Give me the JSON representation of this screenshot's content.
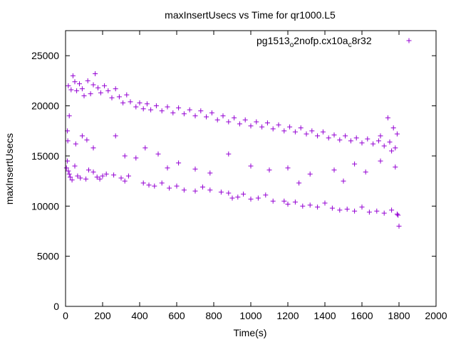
{
  "chart_data": {
    "type": "scatter",
    "title": "maxInsertUsecs vs Time for qr1000.L5",
    "xlabel": "Time(s)",
    "ylabel": "maxInsertUsecs",
    "xlim": [
      0,
      2000
    ],
    "ylim": [
      0,
      27500
    ],
    "x_ticks": [
      0,
      200,
      400,
      600,
      800,
      1000,
      1200,
      1400,
      1600,
      1800,
      2000
    ],
    "x_tick_labels": [
      "0",
      "200",
      "400",
      "600",
      "800",
      "1000",
      "1200",
      "1400",
      "1600",
      "1800",
      "2000"
    ],
    "y_ticks": [
      0,
      5000,
      10000,
      15000,
      20000,
      25000
    ],
    "y_tick_labels": [
      "0",
      "5000",
      "10000",
      "15000",
      "20000",
      "25000"
    ],
    "grid": false,
    "legend_position": "top-right",
    "series": [
      {
        "name": "pg1513o2nofp.cx10ac8r32",
        "legend_parts": [
          {
            "text": "pg1513",
            "sub": false
          },
          {
            "text": "o",
            "sub": true
          },
          {
            "text": "2nofp.cx10a",
            "sub": false
          },
          {
            "text": "c",
            "sub": true
          },
          {
            "text": "8r32",
            "sub": false
          }
        ],
        "color": "#9400d3",
        "marker": "plus",
        "points": [
          [
            5,
            13800
          ],
          [
            10,
            14500
          ],
          [
            15,
            13500
          ],
          [
            20,
            13200
          ],
          [
            25,
            12900
          ],
          [
            35,
            12600
          ],
          [
            50,
            14000
          ],
          [
            65,
            13000
          ],
          [
            80,
            12800
          ],
          [
            110,
            12700
          ],
          [
            125,
            13600
          ],
          [
            150,
            13400
          ],
          [
            170,
            12900
          ],
          [
            185,
            12700
          ],
          [
            200,
            13000
          ],
          [
            220,
            13200
          ],
          [
            260,
            13100
          ],
          [
            300,
            12800
          ],
          [
            320,
            12500
          ],
          [
            340,
            13000
          ],
          [
            420,
            12300
          ],
          [
            450,
            12100
          ],
          [
            480,
            12000
          ],
          [
            520,
            12300
          ],
          [
            560,
            11800
          ],
          [
            600,
            12000
          ],
          [
            640,
            11600
          ],
          [
            700,
            11500
          ],
          [
            740,
            11900
          ],
          [
            780,
            11600
          ],
          [
            840,
            11400
          ],
          [
            880,
            11300
          ],
          [
            900,
            10800
          ],
          [
            930,
            10900
          ],
          [
            960,
            11200
          ],
          [
            1000,
            10700
          ],
          [
            1040,
            10800
          ],
          [
            1080,
            11100
          ],
          [
            1120,
            10500
          ],
          [
            1180,
            10500
          ],
          [
            1200,
            10200
          ],
          [
            1240,
            10400
          ],
          [
            1280,
            10000
          ],
          [
            1320,
            10100
          ],
          [
            1360,
            9900
          ],
          [
            1400,
            10300
          ],
          [
            1440,
            9800
          ],
          [
            1480,
            9600
          ],
          [
            1520,
            9700
          ],
          [
            1560,
            9500
          ],
          [
            1600,
            9900
          ],
          [
            1640,
            9400
          ],
          [
            1680,
            9500
          ],
          [
            1720,
            9300
          ],
          [
            1760,
            9600
          ],
          [
            1790,
            9200
          ],
          [
            1800,
            8000
          ],
          [
            1795,
            9100
          ],
          [
            12,
            16500
          ],
          [
            10,
            17500
          ],
          [
            20,
            19000
          ],
          [
            55,
            16200
          ],
          [
            90,
            17000
          ],
          [
            115,
            16600
          ],
          [
            150,
            15800
          ],
          [
            270,
            17000
          ],
          [
            320,
            15000
          ],
          [
            380,
            14800
          ],
          [
            430,
            15800
          ],
          [
            500,
            15200
          ],
          [
            550,
            13800
          ],
          [
            610,
            14300
          ],
          [
            700,
            13700
          ],
          [
            780,
            13300
          ],
          [
            880,
            15200
          ],
          [
            1000,
            14000
          ],
          [
            1100,
            13600
          ],
          [
            1200,
            13800
          ],
          [
            1260,
            12300
          ],
          [
            1320,
            13200
          ],
          [
            1450,
            13600
          ],
          [
            1500,
            12500
          ],
          [
            1560,
            14200
          ],
          [
            1620,
            13400
          ],
          [
            1700,
            14500
          ],
          [
            1760,
            15500
          ],
          [
            1780,
            13900
          ],
          [
            15,
            22000
          ],
          [
            30,
            21600
          ],
          [
            40,
            23000
          ],
          [
            50,
            22400
          ],
          [
            60,
            21500
          ],
          [
            75,
            22200
          ],
          [
            90,
            21700
          ],
          [
            100,
            21000
          ],
          [
            120,
            22500
          ],
          [
            135,
            21200
          ],
          [
            150,
            22100
          ],
          [
            160,
            23200
          ],
          [
            175,
            21800
          ],
          [
            190,
            21300
          ],
          [
            210,
            22000
          ],
          [
            230,
            21500
          ],
          [
            250,
            20800
          ],
          [
            270,
            21700
          ],
          [
            290,
            20900
          ],
          [
            310,
            20300
          ],
          [
            330,
            21100
          ],
          [
            350,
            20400
          ],
          [
            380,
            19900
          ],
          [
            400,
            20300
          ],
          [
            420,
            19700
          ],
          [
            440,
            20200
          ],
          [
            460,
            19600
          ],
          [
            490,
            20000
          ],
          [
            520,
            19500
          ],
          [
            550,
            19900
          ],
          [
            580,
            19300
          ],
          [
            610,
            19800
          ],
          [
            640,
            19200
          ],
          [
            670,
            19600
          ],
          [
            700,
            19000
          ],
          [
            730,
            19500
          ],
          [
            760,
            18900
          ],
          [
            790,
            19300
          ],
          [
            820,
            18600
          ],
          [
            850,
            19000
          ],
          [
            880,
            18400
          ],
          [
            910,
            18800
          ],
          [
            940,
            18200
          ],
          [
            970,
            18600
          ],
          [
            1000,
            18000
          ],
          [
            1030,
            18400
          ],
          [
            1060,
            17900
          ],
          [
            1090,
            18300
          ],
          [
            1120,
            17700
          ],
          [
            1150,
            18100
          ],
          [
            1180,
            17500
          ],
          [
            1210,
            17900
          ],
          [
            1240,
            17400
          ],
          [
            1270,
            17800
          ],
          [
            1300,
            17200
          ],
          [
            1330,
            17500
          ],
          [
            1360,
            17000
          ],
          [
            1390,
            17400
          ],
          [
            1420,
            16800
          ],
          [
            1450,
            17100
          ],
          [
            1480,
            16600
          ],
          [
            1510,
            17000
          ],
          [
            1540,
            16500
          ],
          [
            1570,
            16800
          ],
          [
            1600,
            16300
          ],
          [
            1630,
            16700
          ],
          [
            1660,
            16200
          ],
          [
            1690,
            16500
          ],
          [
            1720,
            16000
          ],
          [
            1750,
            16400
          ],
          [
            1780,
            15800
          ],
          [
            1790,
            17200
          ],
          [
            1770,
            17800
          ],
          [
            1740,
            18800
          ],
          [
            1700,
            17000
          ]
        ]
      }
    ]
  }
}
